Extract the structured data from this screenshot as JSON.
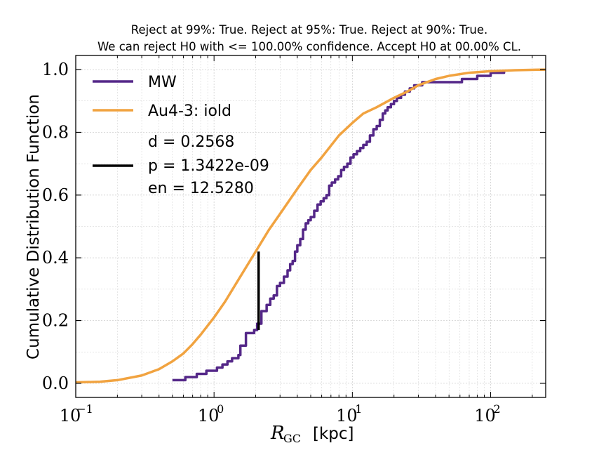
{
  "chart_data": {
    "type": "line",
    "title_lines": [
      "Reject at 99%: True. Reject at 95%: True. Reject at 90%: True.",
      "We can reject H0 with <= 100.00% confidence. Accept H0 at 00.00% CL."
    ],
    "xlabel_main": "R",
    "xlabel_sub": "GC",
    "xlabel_unit": "[kpc]",
    "ylabel": "Cumulative Distribution Function",
    "xscale": "log",
    "xlim": [
      0.1,
      250
    ],
    "ylim": [
      -0.045,
      1.045
    ],
    "x_ticks": [
      {
        "value": 0.1,
        "base": "10",
        "exp": "−1"
      },
      {
        "value": 1,
        "base": "10",
        "exp": "0"
      },
      {
        "value": 10,
        "base": "10",
        "exp": "1"
      },
      {
        "value": 100,
        "base": "10",
        "exp": "2"
      }
    ],
    "y_ticks": [
      {
        "value": 0.0,
        "label": "0.0"
      },
      {
        "value": 0.2,
        "label": "0.2"
      },
      {
        "value": 0.4,
        "label": "0.4"
      },
      {
        "value": 0.6,
        "label": "0.6"
      },
      {
        "value": 0.8,
        "label": "0.8"
      },
      {
        "value": 1.0,
        "label": "1.0"
      }
    ],
    "grid": true,
    "legend_position": "top-left",
    "series": [
      {
        "name": "MW",
        "color": "#542788",
        "style": "step",
        "x": [
          0.5,
          0.58,
          0.62,
          0.68,
          0.75,
          0.8,
          0.88,
          1.05,
          1.15,
          1.25,
          1.35,
          1.5,
          1.55,
          1.7,
          1.95,
          2.05,
          2.2,
          2.4,
          2.55,
          2.7,
          2.85,
          3.0,
          3.2,
          3.4,
          3.55,
          3.7,
          3.85,
          4.0,
          4.2,
          4.4,
          4.6,
          4.8,
          5.0,
          5.3,
          5.6,
          5.9,
          6.2,
          6.5,
          6.8,
          7.1,
          7.5,
          7.9,
          8.3,
          8.7,
          9.2,
          9.7,
          10.2,
          10.8,
          11.4,
          12.0,
          12.7,
          13.4,
          14.2,
          15.0,
          15.8,
          16.6,
          17.3,
          18.0,
          19.0,
          20.0,
          21.0,
          22.5,
          24.0,
          26.0,
          28.0,
          30.0,
          32.0,
          35.0,
          38.0,
          42.0,
          48.0,
          55.0,
          62.0,
          70.0,
          80.0,
          90.0,
          100.0,
          110.0,
          125.0
        ],
        "y": [
          0.01,
          0.01,
          0.02,
          0.02,
          0.03,
          0.03,
          0.04,
          0.05,
          0.06,
          0.07,
          0.08,
          0.09,
          0.12,
          0.16,
          0.17,
          0.19,
          0.23,
          0.25,
          0.27,
          0.28,
          0.31,
          0.32,
          0.34,
          0.36,
          0.38,
          0.39,
          0.42,
          0.44,
          0.46,
          0.49,
          0.51,
          0.52,
          0.53,
          0.55,
          0.57,
          0.58,
          0.59,
          0.6,
          0.63,
          0.64,
          0.65,
          0.66,
          0.68,
          0.69,
          0.7,
          0.72,
          0.73,
          0.74,
          0.75,
          0.76,
          0.77,
          0.79,
          0.81,
          0.82,
          0.84,
          0.86,
          0.87,
          0.88,
          0.89,
          0.9,
          0.91,
          0.92,
          0.93,
          0.94,
          0.95,
          0.95,
          0.96,
          0.96,
          0.96,
          0.96,
          0.96,
          0.96,
          0.97,
          0.97,
          0.98,
          0.98,
          0.99,
          0.99,
          1.0
        ]
      },
      {
        "name": "Au4-3: iold",
        "color": "#f1a340",
        "style": "smooth",
        "x": [
          0.1,
          0.15,
          0.2,
          0.3,
          0.4,
          0.5,
          0.6,
          0.7,
          0.8,
          1.0,
          1.2,
          1.5,
          2.0,
          2.5,
          3.0,
          4.0,
          5.0,
          6.0,
          8.0,
          10.0,
          12.0,
          15.0,
          20.0,
          25.0,
          30.0,
          40.0,
          50.0,
          70.0,
          100.0,
          150.0,
          250.0
        ],
        "y": [
          0.003,
          0.005,
          0.01,
          0.025,
          0.045,
          0.07,
          0.095,
          0.125,
          0.155,
          0.21,
          0.26,
          0.33,
          0.42,
          0.49,
          0.54,
          0.62,
          0.68,
          0.72,
          0.79,
          0.83,
          0.86,
          0.88,
          0.91,
          0.93,
          0.95,
          0.97,
          0.98,
          0.99,
          0.995,
          0.998,
          1.0
        ]
      }
    ],
    "ks_line": {
      "x": 2.1,
      "y1": 0.17,
      "y2": 0.42,
      "color": "#000000"
    },
    "legend": {
      "stat_lines": [
        "d = 0.2568",
        "p = 1.3422e-09",
        "en = 12.5280"
      ]
    }
  }
}
